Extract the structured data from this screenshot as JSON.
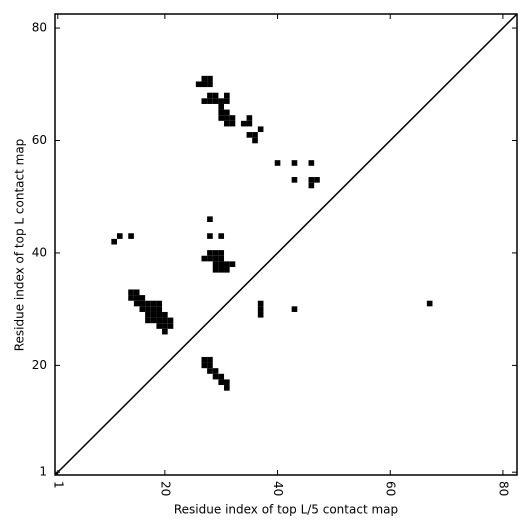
{
  "chart_data": {
    "type": "scatter",
    "marker": "square",
    "x_label": "Residue index of top L/5 contact map",
    "y_label": "Residue index of top L contact map",
    "color": "#000000",
    "diagonal": true,
    "x": [
      27,
      28,
      26,
      27,
      28,
      28,
      29,
      31,
      27,
      28,
      29,
      30,
      31,
      30,
      30,
      31,
      30,
      31,
      32,
      31,
      32,
      35,
      34,
      35,
      35,
      36,
      36,
      37,
      40,
      43,
      46,
      43,
      46,
      47,
      46,
      28,
      28,
      30,
      11,
      12,
      14,
      28,
      29,
      30,
      27,
      28,
      29,
      30,
      29,
      30,
      31,
      32,
      29,
      30,
      31,
      14,
      15,
      14,
      15,
      16,
      15,
      16,
      17,
      18,
      19,
      16,
      17,
      18,
      19,
      17,
      18,
      19,
      20,
      17,
      18,
      19,
      20,
      21,
      19,
      20,
      21,
      20,
      37,
      37,
      37,
      43,
      67,
      27,
      28,
      27,
      28,
      28,
      29,
      29,
      30,
      30,
      31,
      31
    ],
    "y": [
      71,
      71,
      70,
      70,
      70,
      68,
      68,
      68,
      67,
      67,
      67,
      67,
      67,
      66,
      65,
      65,
      64,
      64,
      64,
      63,
      63,
      64,
      63,
      63,
      61,
      61,
      60,
      62,
      56,
      56,
      56,
      53,
      53,
      53,
      52,
      46,
      43,
      43,
      42,
      43,
      43,
      40,
      40,
      40,
      39,
      39,
      39,
      39,
      38,
      38,
      38,
      38,
      37,
      37,
      37,
      33,
      33,
      32,
      32,
      32,
      31,
      31,
      31,
      31,
      31,
      30,
      30,
      30,
      30,
      29,
      29,
      29,
      29,
      28,
      28,
      28,
      28,
      28,
      27,
      27,
      27,
      26,
      31,
      30,
      29,
      30,
      31,
      21,
      21,
      20,
      20,
      19,
      19,
      18,
      18,
      17,
      17,
      16
    ],
    "xlim": [
      0.5,
      82.5
    ],
    "ylim": [
      0.5,
      82.5
    ],
    "xticks": [
      1,
      20,
      40,
      60,
      80
    ],
    "yticks": [
      1,
      20,
      40,
      60,
      80
    ]
  }
}
